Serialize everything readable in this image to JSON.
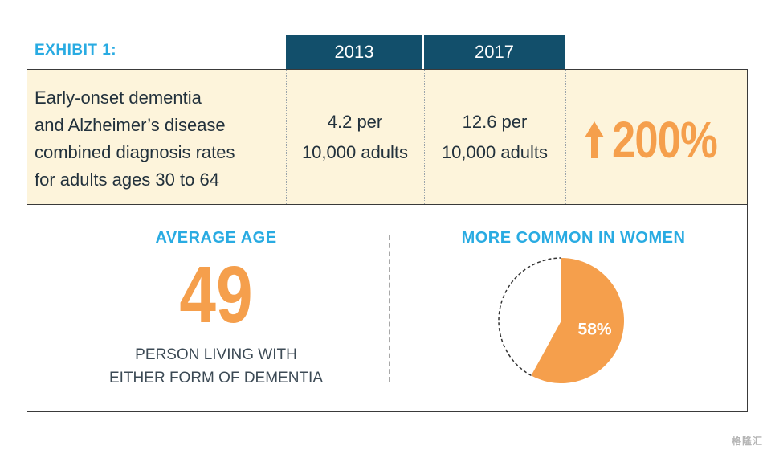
{
  "exhibit": {
    "label": "EXHIBIT 1:"
  },
  "headers": {
    "year_1": "2013",
    "year_2": "2017"
  },
  "stats": {
    "description_lines": [
      "Early-onset dementia",
      "and Alzheimer’s disease",
      "combined diagnosis rates",
      "for adults ages 30 to 64"
    ],
    "rate_2013": {
      "line1": "4.2 per",
      "line2": "10,000 adults"
    },
    "rate_2017": {
      "line1": "12.6 per",
      "line2": "10,000 adults"
    },
    "increase": {
      "value": "200%",
      "icon": "up-arrow-icon"
    }
  },
  "average_age": {
    "title": "AVERAGE AGE",
    "value": "49",
    "caption_lines": [
      "PERSON LIVING WITH",
      "EITHER FORM OF DEMENTIA"
    ]
  },
  "women": {
    "title": "MORE COMMON IN WOMEN"
  },
  "chart_data": {
    "type": "pie",
    "slices": [
      {
        "label": "58%",
        "value": 58,
        "color": "#f59f4c"
      },
      {
        "label": "",
        "value": 42,
        "color": "#ffffff"
      }
    ]
  },
  "colors": {
    "accent_blue": "#29abe2",
    "header_navy": "#124f6b",
    "accent_orange": "#f59f4c",
    "row_cream": "#fdf4db"
  },
  "watermark": {
    "text": "格隆汇"
  }
}
